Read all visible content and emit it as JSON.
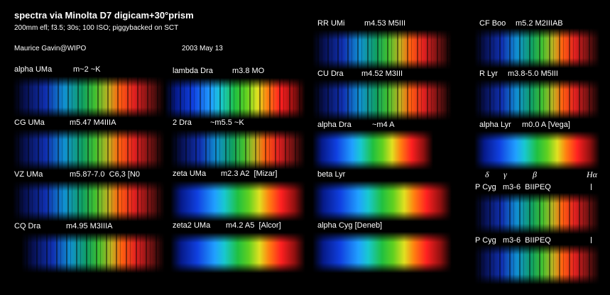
{
  "header": {
    "title": "spectra via Minolta D7 digicam+30°prism",
    "subtitle": "200mm efl; f3.5; 30s; 100 ISO; piggybacked on SCT",
    "author": "Maurice Gavin@WIPO",
    "date": "2003 May 13"
  },
  "columns": [
    [
      {
        "name": "alpha UMa",
        "info": "m~2 ~K"
      },
      {
        "name": "CG UMa",
        "info": "m5.47 M4IIIA"
      },
      {
        "name": "VZ UMa",
        "info": "m5.87-7.0  C6,3 [N0"
      },
      {
        "name": "CQ Dra",
        "info": "m4.95 M3IIIA"
      }
    ],
    [
      {
        "name": "lambda Dra",
        "info": "m3.8 MO"
      },
      {
        "name": "2 Dra",
        "info": "~m5.5 ~K"
      },
      {
        "name": "zeta UMa",
        "info": "m2.3 A2  [Mizar]"
      },
      {
        "name": "zeta2 UMa",
        "info": "m4.2 A5  [Alcor]"
      }
    ],
    [
      {
        "name": "RR UMi",
        "info": "m4.53 M5III"
      },
      {
        "name": "CU Dra",
        "info": "m4.52 M3III"
      },
      {
        "name": "alpha Dra",
        "info": "~m4 A"
      },
      {
        "name": "beta Lyr"
      },
      {
        "name": "alpha Cyg [Deneb]"
      }
    ],
    [
      {
        "name": "CF Boo",
        "info": "m5.2 M2IIIAB"
      },
      {
        "name": "R Lyr",
        "info": "m3.8-5.0 M5III"
      },
      {
        "name": "alpha Lyr",
        "info": "m0.0 A [Vega]"
      },
      {
        "name": "P Cyg",
        "info": "m3-6  BIIPEQ"
      },
      {
        "name": "P Cyg",
        "info": "m3-6  BIIPEQ"
      }
    ]
  ],
  "line_markers": [
    "δ",
    "γ",
    "β",
    "Hα"
  ]
}
